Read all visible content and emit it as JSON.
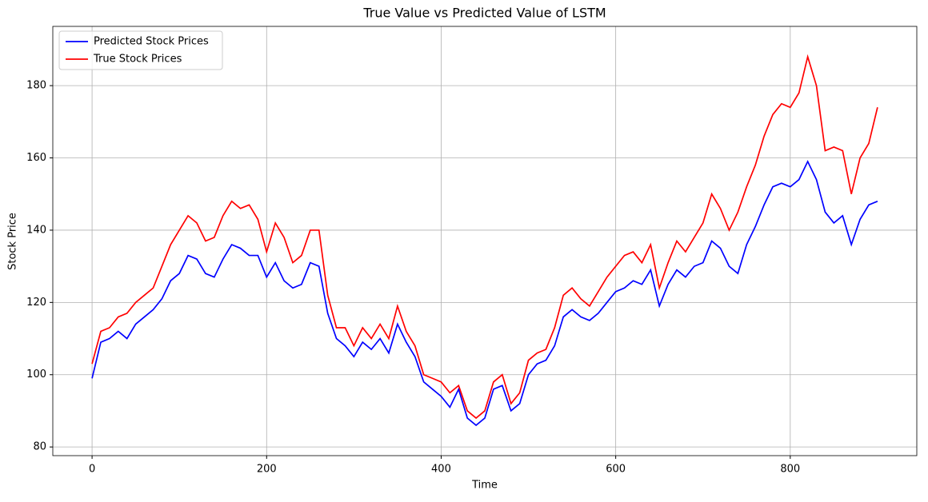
{
  "chart_data": {
    "type": "line",
    "title": "True Value vs Predicted Value of LSTM",
    "x_label": "Time",
    "y_label": "Stock Price",
    "x": [
      0,
      10,
      20,
      30,
      40,
      50,
      60,
      70,
      80,
      90,
      100,
      110,
      120,
      130,
      140,
      150,
      160,
      170,
      180,
      190,
      200,
      210,
      220,
      230,
      240,
      250,
      260,
      270,
      280,
      290,
      300,
      310,
      320,
      330,
      340,
      350,
      360,
      370,
      380,
      390,
      400,
      410,
      420,
      430,
      440,
      450,
      460,
      470,
      480,
      490,
      500,
      510,
      520,
      530,
      540,
      550,
      560,
      570,
      580,
      590,
      600,
      610,
      620,
      630,
      640,
      650,
      660,
      670,
      680,
      690,
      700,
      710,
      720,
      730,
      740,
      750,
      760,
      770,
      780,
      790,
      800,
      810,
      820,
      830,
      840,
      850,
      860,
      870,
      880,
      890,
      900
    ],
    "series": [
      {
        "name": "Predicted Stock Prices",
        "color": "#0000ff",
        "values": [
          99,
          109,
          110,
          112,
          110,
          114,
          116,
          118,
          121,
          126,
          128,
          133,
          132,
          128,
          127,
          132,
          136,
          135,
          133,
          133,
          127,
          131,
          126,
          124,
          125,
          131,
          130,
          117,
          110,
          108,
          105,
          109,
          107,
          110,
          106,
          114,
          109,
          105,
          98,
          96,
          94,
          91,
          96,
          88,
          86,
          88,
          96,
          97,
          90,
          92,
          100,
          103,
          104,
          108,
          116,
          118,
          116,
          115,
          117,
          120,
          123,
          124,
          126,
          125,
          129,
          119,
          125,
          129,
          127,
          130,
          131,
          137,
          135,
          130,
          128,
          136,
          141,
          147,
          152,
          153,
          152,
          154,
          159,
          154,
          145,
          142,
          144,
          136,
          143,
          147,
          148
        ]
      },
      {
        "name": "True Stock Prices",
        "color": "#ff0000",
        "values": [
          103,
          112,
          113,
          116,
          117,
          120,
          122,
          124,
          130,
          136,
          140,
          144,
          142,
          137,
          138,
          144,
          148,
          146,
          147,
          143,
          134,
          142,
          138,
          131,
          133,
          140,
          140,
          122,
          113,
          113,
          108,
          113,
          110,
          114,
          110,
          119,
          112,
          108,
          100,
          99,
          98,
          95,
          97,
          90,
          88,
          90,
          98,
          100,
          92,
          95,
          104,
          106,
          107,
          113,
          122,
          124,
          121,
          119,
          123,
          127,
          130,
          133,
          134,
          131,
          136,
          124,
          131,
          137,
          134,
          138,
          142,
          150,
          146,
          140,
          145,
          152,
          158,
          166,
          172,
          175,
          174,
          178,
          188,
          180,
          162,
          163,
          162,
          150,
          160,
          164,
          174
        ]
      }
    ],
    "xlim": [
      -45,
      945
    ],
    "ylim": [
      77.6,
      196.4
    ],
    "xticks": [
      0,
      200,
      400,
      600,
      800
    ],
    "yticks": [
      80,
      100,
      120,
      140,
      160,
      180
    ],
    "grid": true,
    "legend": "upper-left"
  }
}
